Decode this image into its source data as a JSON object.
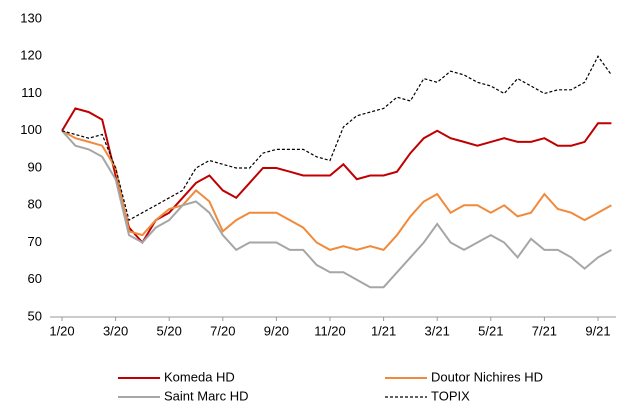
{
  "chart_data": {
    "type": "line",
    "categories": [
      "1/20",
      null,
      null,
      null,
      "3/20",
      null,
      null,
      null,
      "5/20",
      null,
      null,
      null,
      "7/20",
      null,
      null,
      null,
      "9/20",
      null,
      null,
      null,
      "11/20",
      null,
      null,
      null,
      "1/21",
      null,
      null,
      null,
      "3/21",
      null,
      null,
      null,
      "5/21",
      null,
      null,
      null,
      "7/21",
      null,
      null,
      null,
      "9/21",
      null
    ],
    "ylim": [
      50,
      130
    ],
    "yticks": [
      50,
      60,
      70,
      80,
      90,
      100,
      110,
      120,
      130
    ],
    "series": [
      {
        "name": "Komeda HD",
        "color": "#c00000",
        "dash": false,
        "values": [
          100,
          106,
          105,
          103,
          88,
          74,
          70,
          76,
          78,
          82,
          86,
          88,
          84,
          82,
          86,
          90,
          90,
          89,
          88,
          88,
          88,
          91,
          87,
          88,
          88,
          89,
          94,
          98,
          100,
          98,
          97,
          96,
          97,
          98,
          97,
          97,
          98,
          96,
          96,
          97,
          102,
          102
        ]
      },
      {
        "name": "Doutor Nichires HD",
        "color": "#f08a3c",
        "dash": false,
        "values": [
          100,
          98,
          97,
          96,
          90,
          73,
          72,
          76,
          79,
          80,
          84,
          81,
          73,
          76,
          78,
          78,
          78,
          76,
          74,
          70,
          68,
          69,
          68,
          69,
          68,
          72,
          77,
          81,
          83,
          78,
          80,
          80,
          78,
          80,
          77,
          78,
          83,
          79,
          78,
          76,
          78,
          80
        ]
      },
      {
        "name": "Saint Marc HD",
        "color": "#a6a6a6",
        "dash": false,
        "values": [
          100,
          96,
          95,
          93,
          87,
          72,
          70,
          74,
          76,
          80,
          81,
          78,
          72,
          68,
          70,
          70,
          70,
          68,
          68,
          64,
          62,
          62,
          60,
          58,
          58,
          62,
          66,
          70,
          75,
          70,
          68,
          70,
          72,
          70,
          66,
          71,
          68,
          68,
          66,
          63,
          66,
          68
        ]
      },
      {
        "name": "TOPIX",
        "color": "#000000",
        "dash": true,
        "values": [
          100,
          99,
          98,
          99,
          90,
          76,
          78,
          80,
          82,
          84,
          90,
          92,
          91,
          90,
          90,
          94,
          95,
          95,
          95,
          93,
          92,
          101,
          104,
          105,
          106,
          109,
          108,
          114,
          113,
          116,
          115,
          113,
          112,
          110,
          114,
          112,
          110,
          111,
          111,
          113,
          120,
          115
        ]
      }
    ]
  }
}
